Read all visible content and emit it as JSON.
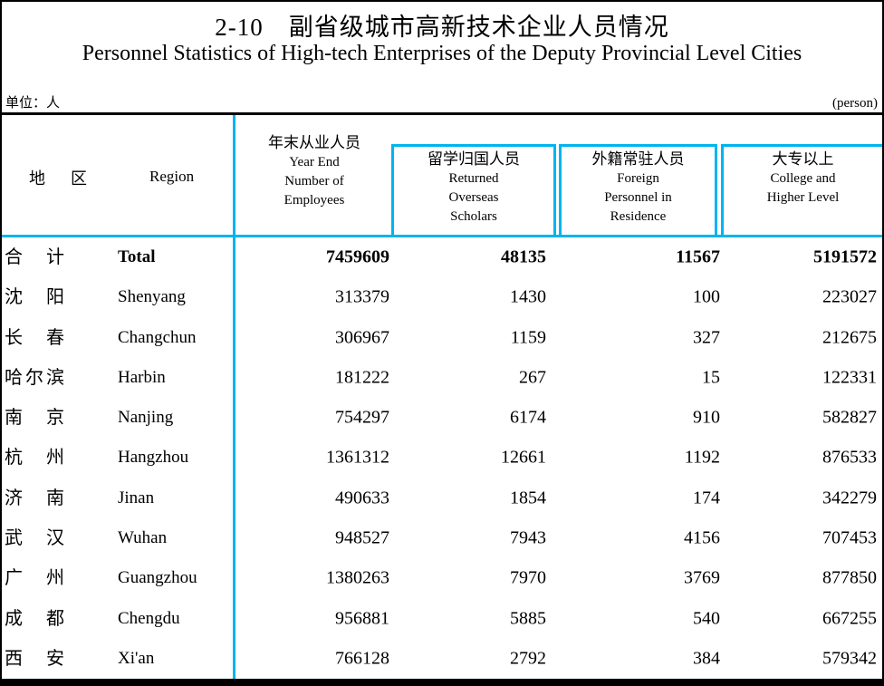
{
  "page": {
    "title_zh": "2-10　副省级城市高新技术企业人员情况",
    "title_en": "Personnel Statistics of High-tech Enterprises of the Deputy Provincial Level Cities",
    "unit_label": "单位：人",
    "unit_note": "(person)"
  },
  "table": {
    "accent_color": "#00b4ef",
    "region_header": {
      "zh_char1": "地",
      "zh_char2": "区",
      "en": "Region"
    },
    "columns": [
      {
        "zh": "年末从业人员",
        "en_lines": [
          "Year End",
          "Number of",
          "Employees"
        ]
      },
      {
        "zh": "留学归国人员",
        "en_lines": [
          "Returned",
          "Overseas",
          "Scholars"
        ]
      },
      {
        "zh": "外籍常驻人员",
        "en_lines": [
          "Foreign",
          "Personnel in",
          "Residence"
        ]
      },
      {
        "zh": "大专以上",
        "en_lines": [
          "College and",
          "Higher Level"
        ]
      }
    ],
    "rows": [
      {
        "zh": "合计",
        "en": "Total",
        "bold": true,
        "values": [
          "7459609",
          "48135",
          "11567",
          "5191572"
        ]
      },
      {
        "zh": "沈阳",
        "en": "Shenyang",
        "bold": false,
        "values": [
          "313379",
          "1430",
          "100",
          "223027"
        ]
      },
      {
        "zh": "长春",
        "en": "Changchun",
        "bold": false,
        "values": [
          "306967",
          "1159",
          "327",
          "212675"
        ]
      },
      {
        "zh": "哈尔滨",
        "en": "Harbin",
        "bold": false,
        "values": [
          "181222",
          "267",
          "15",
          "122331"
        ]
      },
      {
        "zh": "南京",
        "en": "Nanjing",
        "bold": false,
        "values": [
          "754297",
          "6174",
          "910",
          "582827"
        ]
      },
      {
        "zh": "杭州",
        "en": "Hangzhou",
        "bold": false,
        "values": [
          "1361312",
          "12661",
          "1192",
          "876533"
        ]
      },
      {
        "zh": "济南",
        "en": "Jinan",
        "bold": false,
        "values": [
          "490633",
          "1854",
          "174",
          "342279"
        ]
      },
      {
        "zh": "武汉",
        "en": "Wuhan",
        "bold": false,
        "values": [
          "948527",
          "7943",
          "4156",
          "707453"
        ]
      },
      {
        "zh": "广州",
        "en": "Guangzhou",
        "bold": false,
        "values": [
          "1380263",
          "7970",
          "3769",
          "877850"
        ]
      },
      {
        "zh": "成都",
        "en": "Chengdu",
        "bold": false,
        "values": [
          "956881",
          "5885",
          "540",
          "667255"
        ]
      },
      {
        "zh": "西安",
        "en": "Xi'an",
        "bold": false,
        "values": [
          "766128",
          "2792",
          "384",
          "579342"
        ]
      }
    ]
  }
}
